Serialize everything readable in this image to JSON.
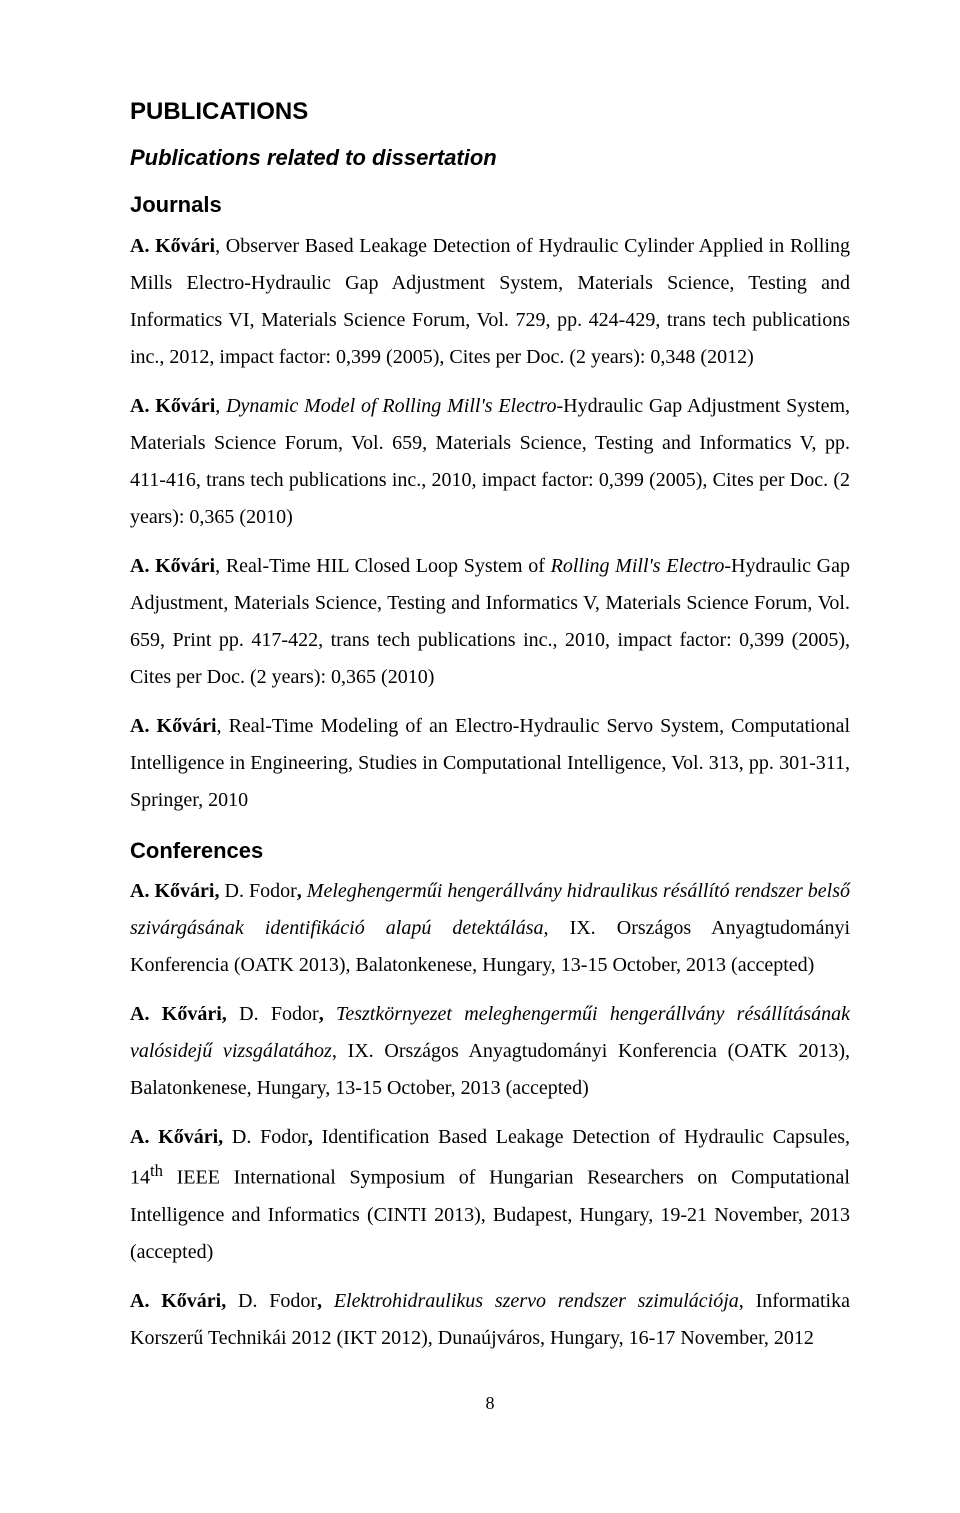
{
  "headings": {
    "main": "PUBLICATIONS",
    "sub": "Publications related to dissertation",
    "journals": "Journals",
    "conferences": "Conferences"
  },
  "journals": [
    {
      "author": "A. Kővári",
      "sep": ", ",
      "post_author": "Observer Based Leakage Detection of Hydraulic Cylinder Applied in Rolling Mills Electro-Hydraulic Gap Adjustment System, Materials Science, Testing and Informatics VI, Materials Science Forum, Vol. 729, pp. 424-429, trans tech publications inc., 2012, impact factor: 0,399 (2005), Cites per Doc. (2 years): 0,348 (2012)"
    },
    {
      "author": "A. Kővári",
      "sep": ", ",
      "italic": "Dynamic Model of Rolling Mill's Electro-",
      "post_italic": "Hydraulic Gap Adjustment System, Materials Science Forum, Vol. 659, Materials Science, Testing and Informatics V, pp. 411-416, trans tech publications inc., 2010, impact factor: 0,399 (2005), Cites per Doc. (2 years): 0,365 (2010)"
    },
    {
      "author": "A. Kővári",
      "sep": ", ",
      "pre_italic": "Real-Time HIL Closed Loop System of ",
      "italic": "Rolling Mill's Electro-",
      "post_italic": "Hydraulic Gap Adjustment, Materials Science, Testing and Informatics V, Materials Science Forum, Vol. 659, Print pp. 417-422, trans tech publications inc., 2010, impact factor: 0,399 (2005), Cites per Doc. (2 years): 0,365 (2010)"
    },
    {
      "author": "A. Kővári",
      "sep": ", ",
      "post_author": "Real-Time Modeling of an Electro-Hydraulic Servo System, Computational Intelligence in Engineering, Studies in Computational Intelligence, Vol. 313, pp. 301-311, Springer, 2010"
    }
  ],
  "conferences": [
    {
      "author": "A. Kővári, ",
      "post_bold_pre_italic": "D. Fodor",
      "bold_comma": ", ",
      "italic": "Meleghengerműi hengerállvány hidraulikus résállító rendszer belső szivárgásának identifikáció alapú detektálása",
      "post_italic": ", IX. Országos Anyagtudományi Konferencia (OATK 2013), Balatonkenese, Hungary, 13-15 October, 2013 (accepted)"
    },
    {
      "author": "A. Kővári, ",
      "post_bold_pre_italic": "D. Fodor",
      "bold_comma": ", ",
      "italic": "Tesztkörnyezet meleghengerműi hengerállvány résállításának valósidejű vizsgálatához",
      "post_italic": ", IX. Országos Anyagtudományi Konferencia (OATK 2013), Balatonkenese, Hungary, 13-15 October, 2013 (accepted)"
    },
    {
      "author": "A. Kővári, ",
      "post_bold_pre_italic": "D. Fodor",
      "bold_comma": ", ",
      "plain_title": "Identification Based Leakage Detection of Hydraulic Capsules, 14",
      "sup": "th",
      "post_sup": " IEEE International Symposium of Hungarian Researchers on Computational Intelligence and Informatics (CINTI 2013), Budapest, Hungary, 19-21 November, 2013 (accepted)"
    },
    {
      "author": "A. Kővári, ",
      "post_bold_pre_italic": "D. Fodor",
      "bold_comma": ", ",
      "italic": "Elektrohidraulikus szervo rendszer szimulációja",
      "post_italic": ", Informatika Korszerű Technikái 2012 (IKT 2012), Dunaújváros, Hungary, 16-17 November, 2012"
    }
  ],
  "page_number": "8"
}
